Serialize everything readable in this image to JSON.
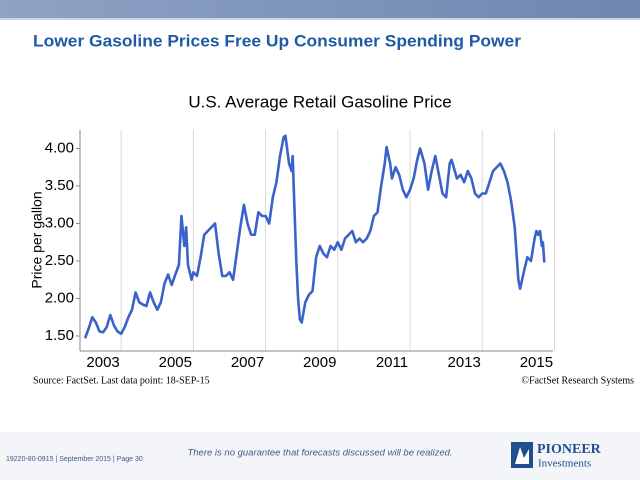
{
  "slide": {
    "title": "Lower Gasoline Prices Free Up Consumer Spending Power",
    "source": "Source: FactSet. Last data point: 18-SEP-15",
    "copyright": "©FactSet Research Systems",
    "disclaimer": "There is no guarantee that forecasts discussed will be realized.",
    "footer": "19220-80-0915 | September 2015 | Page 30",
    "logo_name": "PIONEER",
    "logo_sub": "Investments"
  },
  "chart_data": {
    "type": "line",
    "title": "U.S. Average Retail Gasoline Price",
    "y_label": "Price per gallon",
    "xlim": [
      2002.86,
      2015.96
    ],
    "ylim": [
      1.3,
      4.25
    ],
    "xticks": [
      {
        "value": 2003.5,
        "label": "2003"
      },
      {
        "value": 2005.5,
        "label": "2005"
      },
      {
        "value": 2007.5,
        "label": "2007"
      },
      {
        "value": 2009.5,
        "label": "2009"
      },
      {
        "value": 2011.5,
        "label": "2011"
      },
      {
        "value": 2013.5,
        "label": "2013"
      },
      {
        "value": 2015.5,
        "label": "2015"
      }
    ],
    "xminor_ticks": [
      2004,
      2006,
      2008,
      2010,
      2012,
      2014,
      2016
    ],
    "yticks": [
      {
        "value": 1.5,
        "label": "1.50"
      },
      {
        "value": 2,
        "label": "2.00"
      },
      {
        "value": 2.5,
        "label": "2.50"
      },
      {
        "value": 3,
        "label": "3.00"
      },
      {
        "value": 3.5,
        "label": "3.50"
      },
      {
        "value": 4,
        "label": "4.00"
      }
    ],
    "grid": "x",
    "x": [
      2003.0,
      2003.1,
      2003.2,
      2003.3,
      2003.4,
      2003.5,
      2003.6,
      2003.7,
      2003.8,
      2003.9,
      2004.0,
      2004.1,
      2004.2,
      2004.3,
      2004.4,
      2004.5,
      2004.6,
      2004.7,
      2004.8,
      2004.9,
      2005.0,
      2005.1,
      2005.2,
      2005.3,
      2005.4,
      2005.5,
      2005.6,
      2005.67,
      2005.75,
      2005.8,
      2005.85,
      2005.95,
      2006.0,
      2006.1,
      2006.2,
      2006.3,
      2006.4,
      2006.5,
      2006.6,
      2006.7,
      2006.8,
      2006.9,
      2007.0,
      2007.1,
      2007.2,
      2007.3,
      2007.4,
      2007.5,
      2007.6,
      2007.7,
      2007.8,
      2007.9,
      2008.0,
      2008.1,
      2008.2,
      2008.3,
      2008.4,
      2008.5,
      2008.55,
      2008.65,
      2008.72,
      2008.75,
      2008.8,
      2008.85,
      2008.9,
      2008.95,
      2009.0,
      2009.1,
      2009.2,
      2009.3,
      2009.4,
      2009.5,
      2009.6,
      2009.7,
      2009.8,
      2009.9,
      2010.0,
      2010.1,
      2010.2,
      2010.3,
      2010.4,
      2010.5,
      2010.6,
      2010.7,
      2010.8,
      2010.9,
      2011.0,
      2011.1,
      2011.2,
      2011.3,
      2011.35,
      2011.45,
      2011.5,
      2011.6,
      2011.7,
      2011.8,
      2011.9,
      2012.0,
      2012.1,
      2012.2,
      2012.28,
      2012.4,
      2012.5,
      2012.6,
      2012.7,
      2012.8,
      2012.9,
      2013.0,
      2013.1,
      2013.15,
      2013.3,
      2013.4,
      2013.5,
      2013.6,
      2013.7,
      2013.8,
      2013.9,
      2014.0,
      2014.1,
      2014.2,
      2014.3,
      2014.4,
      2014.5,
      2014.6,
      2014.7,
      2014.8,
      2014.9,
      2015.0,
      2015.05,
      2015.15,
      2015.25,
      2015.35,
      2015.45,
      2015.5,
      2015.55,
      2015.6,
      2015.65,
      2015.68,
      2015.72
    ],
    "series": [
      {
        "name": "U.S. Average Retail Gasoline Price",
        "color": "#3a62c8",
        "values": [
          1.47,
          1.6,
          1.75,
          1.68,
          1.56,
          1.55,
          1.62,
          1.78,
          1.64,
          1.56,
          1.53,
          1.62,
          1.75,
          1.85,
          2.08,
          1.95,
          1.92,
          1.9,
          2.08,
          1.95,
          1.85,
          1.95,
          2.2,
          2.32,
          2.18,
          2.32,
          2.45,
          3.1,
          2.7,
          2.95,
          2.45,
          2.25,
          2.35,
          2.3,
          2.55,
          2.85,
          2.9,
          2.95,
          3.0,
          2.6,
          2.3,
          2.3,
          2.35,
          2.25,
          2.6,
          2.95,
          3.25,
          3.0,
          2.85,
          2.85,
          3.15,
          3.1,
          3.1,
          3.0,
          3.35,
          3.55,
          3.9,
          4.15,
          4.17,
          3.8,
          3.7,
          3.9,
          3.2,
          2.5,
          2.0,
          1.72,
          1.68,
          1.95,
          2.05,
          2.1,
          2.55,
          2.7,
          2.6,
          2.55,
          2.7,
          2.65,
          2.75,
          2.65,
          2.8,
          2.85,
          2.9,
          2.75,
          2.8,
          2.75,
          2.8,
          2.9,
          3.1,
          3.15,
          3.5,
          3.8,
          4.02,
          3.8,
          3.6,
          3.75,
          3.65,
          3.45,
          3.35,
          3.45,
          3.6,
          3.85,
          4.0,
          3.8,
          3.45,
          3.7,
          3.9,
          3.65,
          3.4,
          3.35,
          3.8,
          3.85,
          3.6,
          3.65,
          3.55,
          3.7,
          3.6,
          3.4,
          3.35,
          3.4,
          3.4,
          3.55,
          3.7,
          3.75,
          3.8,
          3.7,
          3.55,
          3.3,
          2.95,
          2.25,
          2.13,
          2.35,
          2.55,
          2.5,
          2.8,
          2.9,
          2.85,
          2.9,
          2.7,
          2.75,
          2.48
        ]
      }
    ]
  }
}
